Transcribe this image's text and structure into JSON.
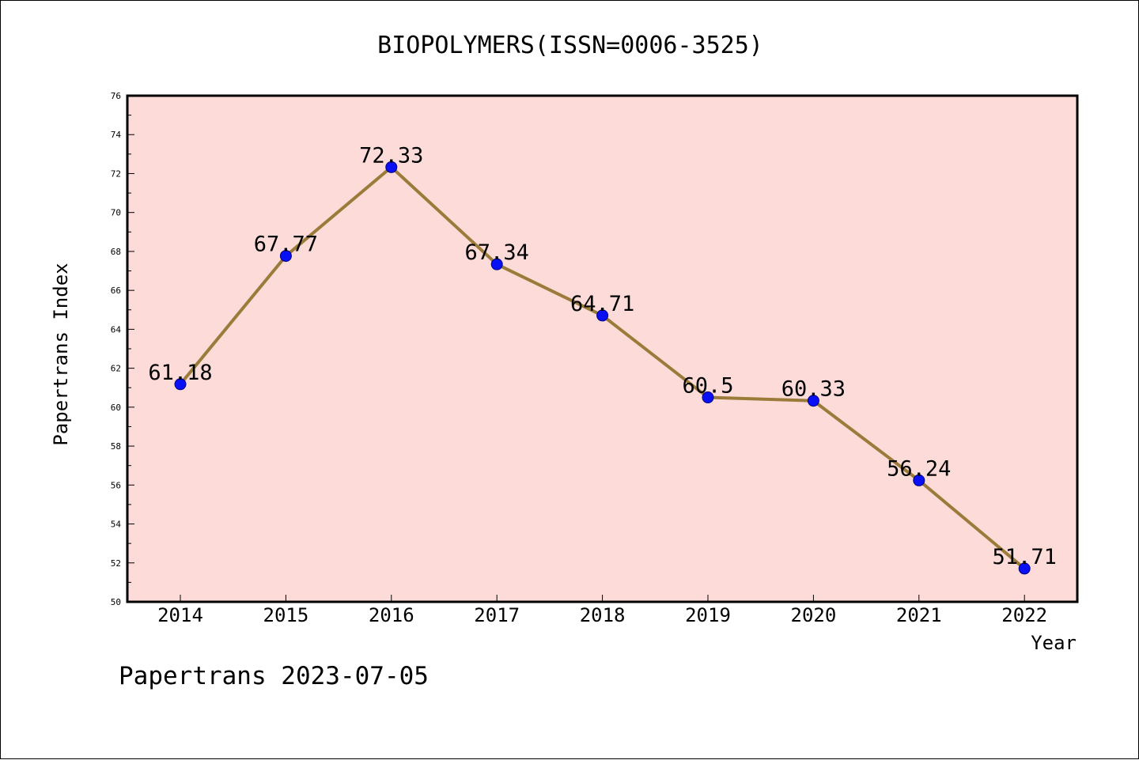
{
  "chart_data": {
    "type": "line",
    "title": "BIOPOLYMERS(ISSN=0006-3525)",
    "xlabel": "Year",
    "ylabel": "Papertrans Index",
    "categories": [
      "2014",
      "2015",
      "2016",
      "2017",
      "2018",
      "2019",
      "2020",
      "2021",
      "2022"
    ],
    "values": [
      61.18,
      67.77,
      72.33,
      67.34,
      64.71,
      60.5,
      60.33,
      56.24,
      51.71
    ],
    "data_labels": [
      "61.18",
      "67.77",
      "72.33",
      "67.34",
      "64.71",
      "60.5",
      "60.33",
      "56.24",
      "51.71"
    ],
    "ylim": [
      50,
      76
    ],
    "yticks": [
      50,
      52,
      54,
      56,
      58,
      60,
      62,
      64,
      66,
      68,
      70,
      72,
      74,
      76
    ],
    "grid": false,
    "legend": "none",
    "footer": "Papertrans 2023-07-05",
    "colors": {
      "plot_background": "#fddbd8",
      "line": "#9a7b3a",
      "marker": "#0a10f5",
      "marker_edge": "#000080"
    }
  }
}
